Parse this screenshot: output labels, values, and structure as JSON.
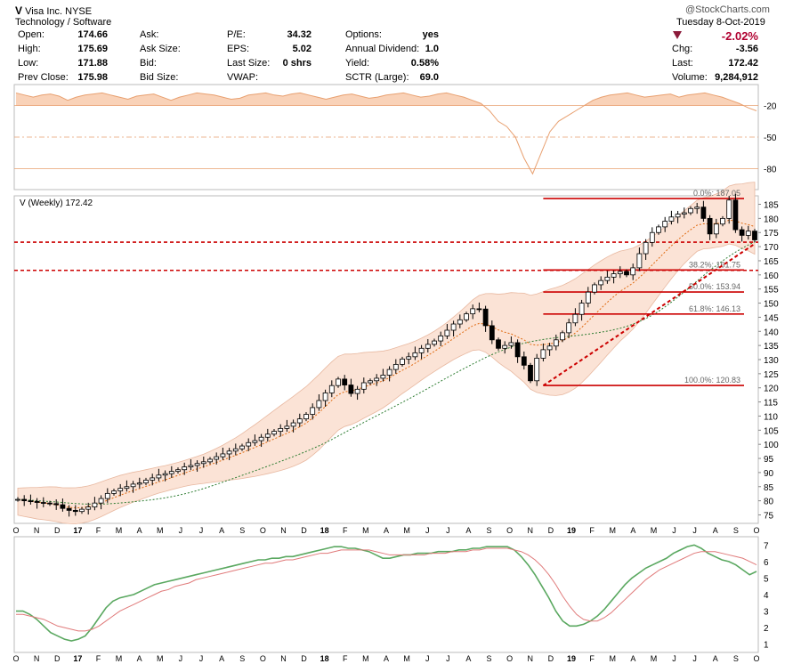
{
  "header": {
    "symbol": "V",
    "name": "Visa Inc.",
    "exchange": "NYSE",
    "sector": "Technology / Software",
    "watermark": "@StockCharts.com",
    "date": "Tuesday  8-Oct-2019",
    "change_pct": "-2.02%",
    "quote": [
      {
        "label": "Open:",
        "value": "174.66"
      },
      {
        "label": "High:",
        "value": "175.69"
      },
      {
        "label": "Low:",
        "value": "171.88"
      },
      {
        "label": "Prev Close:",
        "value": "175.98"
      }
    ],
    "quote2": [
      {
        "label": "Ask:",
        "value": ""
      },
      {
        "label": "Ask Size:",
        "value": ""
      },
      {
        "label": "Bid:",
        "value": ""
      },
      {
        "label": "Bid Size:",
        "value": ""
      }
    ],
    "quote3": [
      {
        "label": "P/E:",
        "value": "34.32"
      },
      {
        "label": "EPS:",
        "value": "5.02"
      },
      {
        "label": "Last Size:",
        "value": "0 shrs"
      },
      {
        "label": "VWAP:",
        "value": ""
      }
    ],
    "quote4": [
      {
        "label": "Options:",
        "value": "yes"
      },
      {
        "label": "Annual Dividend:",
        "value": "1.0"
      },
      {
        "label": "Yield:",
        "value": "0.58%"
      },
      {
        "label": "SCTR (Large):",
        "value": "69.0"
      }
    ],
    "quote5": [
      {
        "label": "Chg:",
        "value": "-3.56"
      },
      {
        "label": "Last:",
        "value": "172.42"
      },
      {
        "label": "Volume:",
        "value": "9,284,912"
      }
    ]
  },
  "colors": {
    "accent_red": "#cc0000",
    "change_red": "#b00030",
    "down_triangle": "#8b1a3a",
    "band_fill": "#fbe3d6",
    "band_stroke": "#e8b8a0",
    "rsi_fill": "#f9d2b8",
    "rsi_line": "#e8a070",
    "ma_orange": "#e06a10",
    "ma_green": "#2e7d32",
    "osc_green": "#5aa860",
    "osc_red": "#e07a7a"
  },
  "chart_data": [
    {
      "type": "line",
      "title": "",
      "ylim": [
        -100,
        0
      ],
      "yticks": [
        "-20",
        "-50",
        "-80"
      ],
      "series": [
        {
          "values": [
            -8,
            -10,
            -12,
            -10,
            -9,
            -11,
            -15,
            -12,
            -10,
            -9,
            -8,
            -10,
            -12,
            -14,
            -11,
            -10,
            -9,
            -12,
            -15,
            -12,
            -10,
            -8,
            -9,
            -10,
            -12,
            -14,
            -13,
            -10,
            -9,
            -8,
            -10,
            -11,
            -9,
            -8,
            -10,
            -12,
            -14,
            -12,
            -10,
            -9,
            -11,
            -13,
            -12,
            -10,
            -9,
            -8,
            -10,
            -12,
            -11,
            -9,
            -8,
            -10,
            -12,
            -15,
            -18,
            -25,
            -35,
            -40,
            -50,
            -70,
            -85,
            -65,
            -45,
            -35,
            -30,
            -25,
            -20,
            -15,
            -12,
            -10,
            -9,
            -8,
            -10,
            -12,
            -11,
            -10,
            -9,
            -12,
            -10,
            -9,
            -8,
            -10,
            -12,
            -15,
            -18,
            -22,
            -25
          ]
        }
      ]
    },
    {
      "type": "candlestick",
      "title": "V (Weekly) 172.42",
      "ylim": [
        72,
        188
      ],
      "yticks": [
        "75",
        "80",
        "85",
        "90",
        "95",
        "100",
        "105",
        "110",
        "115",
        "120",
        "125",
        "130",
        "135",
        "140",
        "145",
        "150",
        "155",
        "160",
        "165",
        "170",
        "175",
        "180",
        "185"
      ],
      "xticks": [
        "O",
        "N",
        "D",
        "17",
        "F",
        "M",
        "A",
        "M",
        "J",
        "J",
        "A",
        "S",
        "O",
        "N",
        "D",
        "18",
        "F",
        "M",
        "A",
        "M",
        "J",
        "J",
        "A",
        "S",
        "O",
        "N",
        "D",
        "19",
        "F",
        "M",
        "A",
        "M",
        "J",
        "J",
        "A",
        "S",
        "O"
      ],
      "hlines": [
        171.6,
        161.6
      ],
      "fib_levels": [
        {
          "label": "0.0%: 187.05",
          "value": 187.05
        },
        {
          "label": "38.2%: 161.75",
          "value": 161.75
        },
        {
          "label": "50.0%: 153.94",
          "value": 153.94
        },
        {
          "label": "61.8%: 146.13",
          "value": 146.13
        },
        {
          "label": "100.0%: 120.83",
          "value": 120.83
        }
      ],
      "trendline": [
        [
          120.8,
          0
        ],
        [
          171.0,
          1
        ]
      ],
      "closes": [
        80.5,
        80.0,
        79.8,
        79.4,
        79.2,
        79.0,
        78.6,
        77.3,
        76.6,
        76.2,
        77.0,
        77.8,
        79.2,
        80.8,
        82.6,
        83.5,
        84.4,
        85.0,
        85.9,
        86.3,
        87.3,
        88.1,
        89.1,
        89.6,
        90.4,
        91.0,
        92.0,
        92.5,
        93.2,
        93.8,
        94.7,
        95.6,
        96.6,
        97.6,
        98.4,
        99.4,
        100.6,
        101.3,
        102.5,
        103.6,
        104.6,
        105.6,
        106.4,
        107.6,
        109.0,
        110.6,
        113.0,
        115.5,
        118.2,
        120.8,
        123.1,
        121.0,
        118.0,
        119.5,
        121.8,
        122.5,
        123.4,
        124.5,
        126.5,
        128.3,
        130.2,
        131.0,
        132.4,
        134.0,
        135.4,
        136.6,
        138.4,
        140.4,
        142.6,
        144.1,
        146.2,
        148.0,
        147.9,
        142.0,
        137.0,
        134.0,
        135.0,
        136.0,
        131.0,
        128.0,
        122.5,
        130.5,
        133.5,
        134.8,
        137.0,
        139.5,
        143.0,
        146.0,
        150.0,
        153.9,
        156.5,
        158.0,
        159.2,
        160.4,
        161.2,
        160.0,
        162.5,
        167.5,
        171.5,
        175.0,
        177.0,
        179.0,
        180.5,
        181.5,
        182.0,
        183.5,
        184.0,
        180.0,
        174.5,
        178.0,
        180.0,
        186.5,
        176.0,
        174.0,
        175.5,
        172.4
      ],
      "ma_fast": [
        80.5,
        80.2,
        79.9,
        79.5,
        79.3,
        79.0,
        78.6,
        78.0,
        77.7,
        77.5,
        77.6,
        77.9,
        78.5,
        79.3,
        80.2,
        81.1,
        82.0,
        82.8,
        83.6,
        84.3,
        85.1,
        85.9,
        86.7,
        87.4,
        88.2,
        89.0,
        89.8,
        90.6,
        91.3,
        92.0,
        92.8,
        93.6,
        94.4,
        95.3,
        96.1,
        97.0,
        98.0,
        98.9,
        99.9,
        100.9,
        101.9,
        102.9,
        103.9,
        105.0,
        106.2,
        107.5,
        109.3,
        111.2,
        113.4,
        115.6,
        117.6,
        118.6,
        118.9,
        119.5,
        120.3,
        121.0,
        121.7,
        122.5,
        123.6,
        124.9,
        126.2,
        127.4,
        128.7,
        130.1,
        131.5,
        132.9,
        134.4,
        135.9,
        137.5,
        139.0,
        140.5,
        142.0,
        142.8,
        142.6,
        141.7,
        140.5,
        139.7,
        139.1,
        138.0,
        137.0,
        135.4,
        135.1,
        135.3,
        135.6,
        136.0,
        136.7,
        137.9,
        139.4,
        141.4,
        143.6,
        145.9,
        148.1,
        150.3,
        152.3,
        154.2,
        155.6,
        157.1,
        159.1,
        161.2,
        163.5,
        165.8,
        168.1,
        170.3,
        172.4,
        174.3,
        176.0,
        177.6,
        178.1,
        178.0,
        178.2,
        178.5,
        179.4,
        179.1,
        178.3,
        177.8,
        177.1
      ]
    },
    {
      "type": "line",
      "ylim": [
        0.5,
        7.5
      ],
      "yticks": [
        "1",
        "2",
        "3",
        "4",
        "5",
        "6",
        "7"
      ],
      "xticks": [
        "O",
        "N",
        "D",
        "17",
        "F",
        "M",
        "A",
        "M",
        "J",
        "J",
        "A",
        "S",
        "O",
        "N",
        "D",
        "18",
        "F",
        "M",
        "A",
        "M",
        "J",
        "J",
        "A",
        "S",
        "O",
        "N",
        "D",
        "19",
        "F",
        "M",
        "A",
        "M",
        "J",
        "J",
        "A",
        "S",
        "O"
      ],
      "series": [
        {
          "values": [
            3.0,
            3.0,
            2.8,
            2.5,
            2.1,
            1.7,
            1.5,
            1.3,
            1.2,
            1.3,
            1.5,
            2.0,
            2.6,
            3.2,
            3.6,
            3.8,
            3.9,
            4.0,
            4.2,
            4.4,
            4.6,
            4.7,
            4.8,
            4.9,
            5.0,
            5.1,
            5.2,
            5.3,
            5.4,
            5.5,
            5.6,
            5.7,
            5.8,
            5.9,
            6.0,
            6.1,
            6.1,
            6.2,
            6.2,
            6.3,
            6.3,
            6.4,
            6.5,
            6.6,
            6.7,
            6.8,
            6.9,
            6.9,
            6.8,
            6.8,
            6.7,
            6.6,
            6.4,
            6.2,
            6.2,
            6.3,
            6.4,
            6.4,
            6.5,
            6.5,
            6.5,
            6.6,
            6.6,
            6.6,
            6.7,
            6.7,
            6.8,
            6.8,
            6.9,
            6.9,
            6.9,
            6.9,
            6.7,
            6.3,
            5.8,
            5.2,
            4.5,
            3.8,
            3.0,
            2.4,
            2.1,
            2.1,
            2.2,
            2.4,
            2.7,
            3.1,
            3.6,
            4.1,
            4.6,
            5.0,
            5.3,
            5.6,
            5.8,
            6.0,
            6.2,
            6.5,
            6.7,
            6.9,
            7.0,
            6.8,
            6.5,
            6.3,
            6.1,
            6.0,
            5.8,
            5.5,
            5.2,
            5.4
          ]
        },
        {
          "values": [
            2.8,
            2.8,
            2.7,
            2.6,
            2.5,
            2.3,
            2.1,
            2.0,
            1.9,
            1.8,
            1.8,
            1.9,
            2.1,
            2.4,
            2.7,
            3.0,
            3.2,
            3.4,
            3.6,
            3.8,
            4.0,
            4.2,
            4.3,
            4.5,
            4.6,
            4.7,
            4.9,
            5.0,
            5.1,
            5.2,
            5.3,
            5.4,
            5.5,
            5.6,
            5.7,
            5.8,
            5.9,
            5.9,
            6.0,
            6.1,
            6.1,
            6.2,
            6.3,
            6.4,
            6.5,
            6.5,
            6.6,
            6.7,
            6.7,
            6.7,
            6.7,
            6.7,
            6.6,
            6.5,
            6.4,
            6.4,
            6.4,
            6.4,
            6.4,
            6.4,
            6.5,
            6.5,
            6.5,
            6.6,
            6.6,
            6.6,
            6.7,
            6.7,
            6.8,
            6.8,
            6.8,
            6.8,
            6.7,
            6.6,
            6.4,
            6.1,
            5.7,
            5.2,
            4.6,
            3.9,
            3.3,
            2.8,
            2.5,
            2.4,
            2.4,
            2.6,
            2.9,
            3.3,
            3.7,
            4.1,
            4.5,
            4.9,
            5.2,
            5.5,
            5.7,
            5.9,
            6.1,
            6.3,
            6.5,
            6.6,
            6.6,
            6.6,
            6.5,
            6.4,
            6.3,
            6.2,
            6.0,
            5.8
          ]
        }
      ]
    }
  ]
}
